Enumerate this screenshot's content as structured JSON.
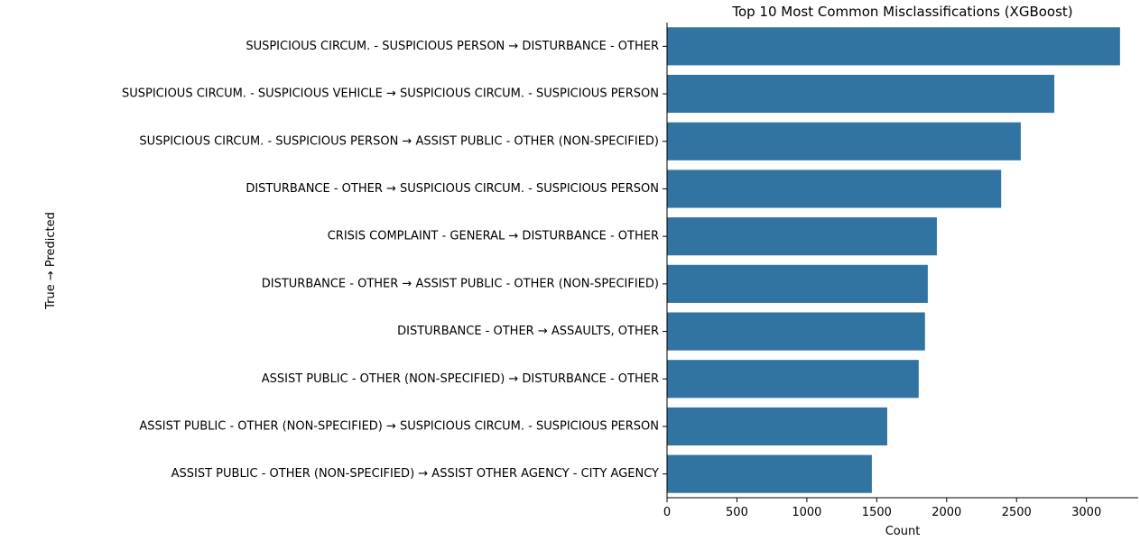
{
  "chart_data": {
    "type": "bar",
    "orientation": "horizontal",
    "title": "Top 10 Most Common Misclassifications (XGBoost)",
    "xlabel": "Count",
    "ylabel": "True → Predicted",
    "categories": [
      "SUSPICIOUS CIRCUM. - SUSPICIOUS PERSON → DISTURBANCE - OTHER",
      "SUSPICIOUS CIRCUM. - SUSPICIOUS VEHICLE → SUSPICIOUS CIRCUM. - SUSPICIOUS PERSON",
      "SUSPICIOUS CIRCUM. - SUSPICIOUS PERSON → ASSIST PUBLIC - OTHER (NON-SPECIFIED)",
      "DISTURBANCE - OTHER → SUSPICIOUS CIRCUM. - SUSPICIOUS PERSON",
      "CRISIS COMPLAINT - GENERAL → DISTURBANCE - OTHER",
      "DISTURBANCE - OTHER → ASSIST PUBLIC - OTHER (NON-SPECIFIED)",
      "DISTURBANCE - OTHER → ASSAULTS, OTHER",
      "ASSIST PUBLIC - OTHER (NON-SPECIFIED) → DISTURBANCE - OTHER",
      "ASSIST PUBLIC - OTHER (NON-SPECIFIED) → SUSPICIOUS CIRCUM. - SUSPICIOUS PERSON",
      "ASSIST PUBLIC - OTHER (NON-SPECIFIED) → ASSIST OTHER AGENCY - CITY AGENCY"
    ],
    "values": [
      3240,
      2770,
      2530,
      2390,
      1930,
      1865,
      1845,
      1800,
      1575,
      1465
    ],
    "xlim": [
      0,
      3370
    ],
    "xticks": [
      0,
      500,
      1000,
      1500,
      2000,
      2500,
      3000
    ],
    "bar_color": "#3274a1",
    "grid": false,
    "legend": "none"
  }
}
